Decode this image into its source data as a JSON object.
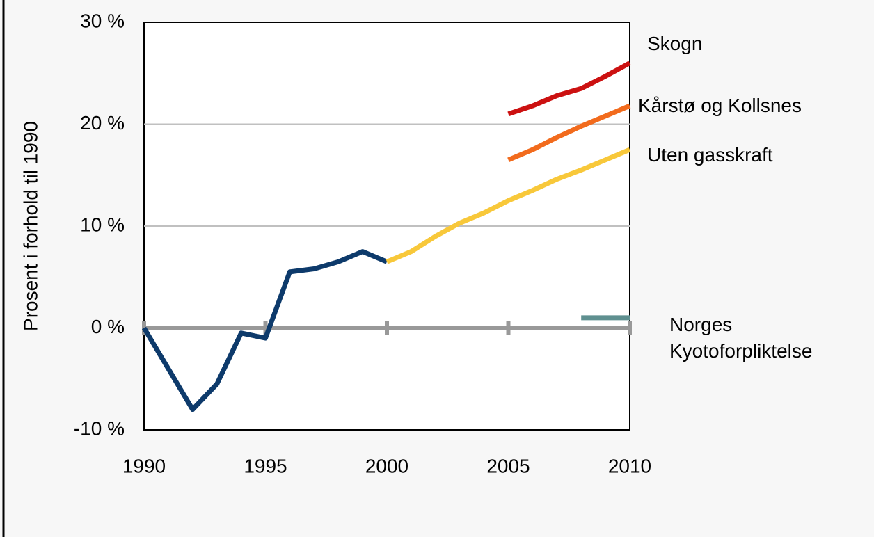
{
  "chart_data": {
    "type": "line",
    "y_label": "Prosent i forhold til 1990",
    "xlim": [
      1990,
      2010
    ],
    "xticks": [
      1990,
      1995,
      2000,
      2005,
      2010
    ],
    "ylim": [
      -10,
      30
    ],
    "yticks": [
      {
        "value": -10,
        "label": "-10 %"
      },
      {
        "value": 0,
        "label": "0 %"
      },
      {
        "value": 10,
        "label": "10 %"
      },
      {
        "value": 20,
        "label": "20 %"
      },
      {
        "value": 30,
        "label": "30 %"
      }
    ],
    "grid": true,
    "series": [
      {
        "color": "#0d3a6b",
        "x": [
          1990,
          1991,
          1992,
          1993,
          1994,
          1995,
          1996,
          1997,
          1998,
          1999,
          2000
        ],
        "values": [
          0,
          -4,
          -8,
          -5.5,
          -0.5,
          -1,
          5.5,
          5.8,
          6.5,
          7.5,
          6.5
        ]
      },
      {
        "name": "Uten gasskraft",
        "color": "#f8c83a",
        "x": [
          2000,
          2001,
          2002,
          2003,
          2004,
          2005,
          2006,
          2007,
          2008,
          2009,
          2010
        ],
        "values": [
          6.5,
          7.5,
          9,
          10.3,
          11.3,
          12.5,
          13.5,
          14.6,
          15.5,
          16.5,
          17.5
        ]
      },
      {
        "name": "Kårstø og Kollsnes",
        "color": "#f26b1d",
        "x": [
          2005,
          2006,
          2007,
          2008,
          2009,
          2010
        ],
        "values": [
          16.5,
          17.5,
          18.7,
          19.8,
          20.8,
          21.8
        ]
      },
      {
        "name": "Skogn",
        "color": "#cc1111",
        "x": [
          2005,
          2006,
          2007,
          2008,
          2009,
          2010
        ],
        "values": [
          21,
          21.8,
          22.8,
          23.5,
          24.7,
          26
        ]
      },
      {
        "name": "Norges Kyotoforpliktelse",
        "color": "#5f9090",
        "x": [
          2008,
          2010
        ],
        "values": [
          1,
          1
        ]
      }
    ]
  }
}
